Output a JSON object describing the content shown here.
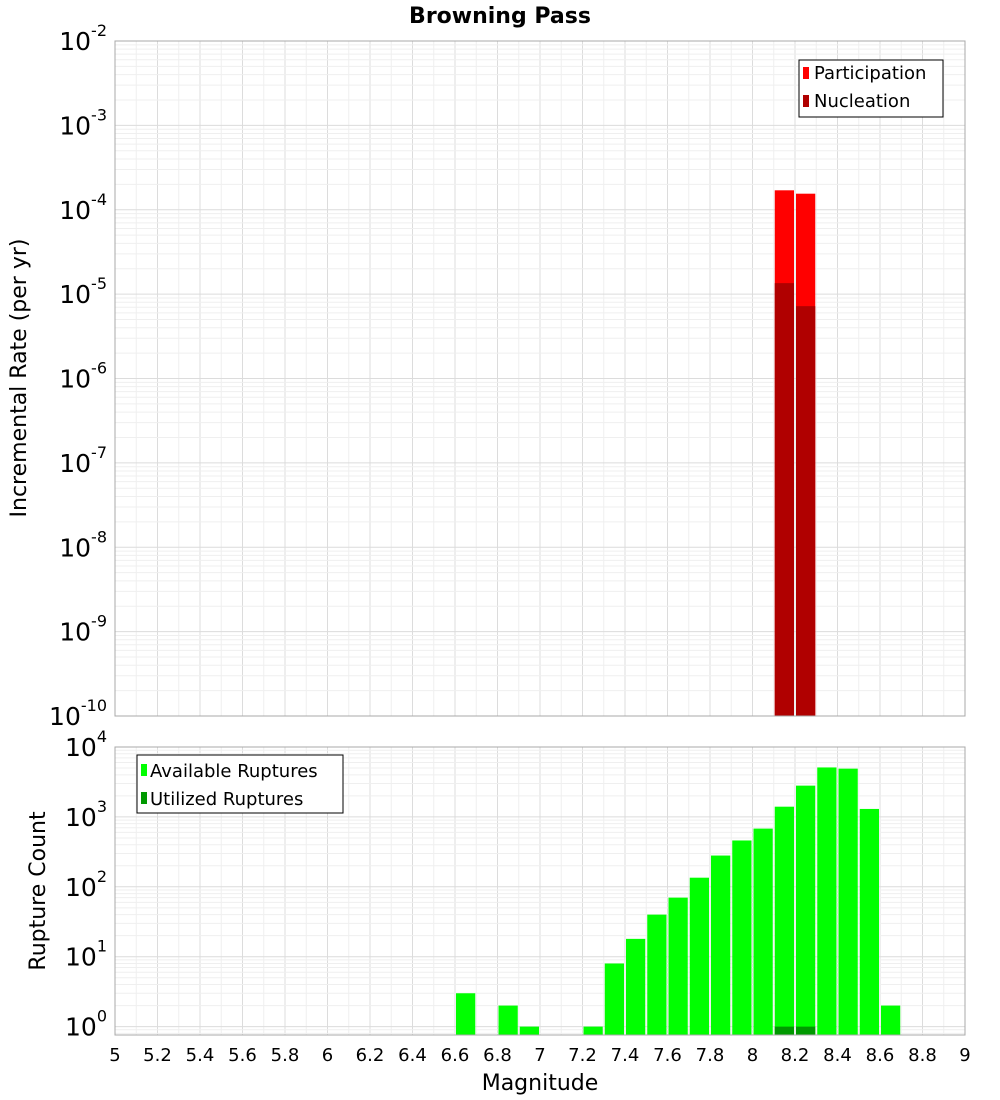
{
  "chart_data": [
    {
      "type": "bar",
      "title": "Browning Pass",
      "ylabel": "Incremental Rate (per yr)",
      "yscale": "log",
      "ylim_exp": [
        -10,
        -2
      ],
      "xlim": [
        5,
        9
      ],
      "bin_width": 0.1,
      "legend_placement": "top-right",
      "grid": true,
      "series": [
        {
          "name": "Participation",
          "color": "#ff0000",
          "x": [
            8.15,
            8.25
          ],
          "values": [
            0.00017,
            0.000155
          ]
        },
        {
          "name": "Nucleation",
          "color": "#b00000",
          "x": [
            8.15,
            8.25
          ],
          "values": [
            1.35e-05,
            7.2e-06
          ]
        }
      ]
    },
    {
      "type": "bar",
      "ylabel": "Rupture Count",
      "xlabel": "Magnitude",
      "yscale": "log",
      "ylim_exp": [
        -0.12,
        4
      ],
      "xlim": [
        5,
        9
      ],
      "bin_width": 0.1,
      "legend_placement": "top-left",
      "grid": true,
      "xticks": [
        "5",
        "5.2",
        "5.4",
        "5.6",
        "5.8",
        "6",
        "6.2",
        "6.4",
        "6.6",
        "6.8",
        "7",
        "7.2",
        "7.4",
        "7.6",
        "7.8",
        "8",
        "8.2",
        "8.4",
        "8.6",
        "8.8",
        "9"
      ],
      "series": [
        {
          "name": "Available Ruptures",
          "color": "#00ff00",
          "x": [
            6.65,
            6.85,
            6.95,
            7.25,
            7.35,
            7.45,
            7.55,
            7.65,
            7.75,
            7.85,
            7.95,
            8.05,
            8.15,
            8.25,
            8.35,
            8.45,
            8.55,
            8.65
          ],
          "values": [
            3,
            2,
            1,
            1,
            8,
            18,
            40,
            70,
            135,
            280,
            460,
            680,
            1400,
            2800,
            5100,
            4900,
            1300,
            2
          ]
        },
        {
          "name": "Utilized Ruptures",
          "color": "#009900",
          "x": [
            8.15,
            8.25
          ],
          "values": [
            1,
            1
          ]
        }
      ]
    }
  ]
}
